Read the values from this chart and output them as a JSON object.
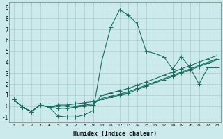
{
  "xlabel": "Humidex (Indice chaleur)",
  "bg_color": "#cce9ec",
  "grid_color": "#aacccc",
  "line_color": "#1a6b60",
  "xlim": [
    -0.5,
    23.5
  ],
  "ylim": [
    -1.5,
    9.5
  ],
  "xticks": [
    0,
    1,
    2,
    3,
    4,
    5,
    6,
    7,
    8,
    9,
    10,
    11,
    12,
    13,
    14,
    15,
    16,
    17,
    18,
    19,
    20,
    21,
    22,
    23
  ],
  "yticks": [
    -1,
    0,
    1,
    2,
    3,
    4,
    5,
    6,
    7,
    8,
    9
  ],
  "line1_x": [
    0,
    1,
    2,
    3,
    4,
    5,
    6,
    7,
    8,
    9,
    10,
    11,
    12,
    13,
    14,
    15,
    16,
    17,
    18,
    19,
    20,
    21,
    22,
    23
  ],
  "line1_y": [
    0.6,
    -0.1,
    -0.5,
    0.1,
    -0.1,
    -0.9,
    -1.0,
    -1.0,
    -0.8,
    -0.4,
    4.2,
    7.2,
    8.8,
    8.3,
    7.5,
    5.0,
    4.8,
    4.5,
    3.4,
    4.5,
    3.5,
    2.0,
    3.5,
    3.5
  ],
  "line2_x": [
    0,
    1,
    2,
    3,
    4,
    5,
    6,
    7,
    8,
    9,
    10,
    11,
    12,
    13,
    14,
    15,
    16,
    17,
    18,
    19,
    20,
    21,
    22,
    23
  ],
  "line2_y": [
    0.6,
    -0.1,
    -0.5,
    0.1,
    -0.1,
    -0.2,
    -0.2,
    -0.1,
    0.0,
    0.1,
    1.0,
    1.2,
    1.4,
    1.6,
    1.9,
    2.2,
    2.5,
    2.8,
    3.1,
    3.4,
    3.7,
    4.0,
    4.3,
    4.6
  ],
  "line3_x": [
    0,
    1,
    2,
    3,
    4,
    5,
    6,
    7,
    8,
    9,
    10,
    11,
    12,
    13,
    14,
    15,
    16,
    17,
    18,
    19,
    20,
    21,
    22,
    23
  ],
  "line3_y": [
    0.6,
    -0.1,
    -0.5,
    0.1,
    -0.1,
    0.0,
    0.0,
    0.0,
    0.1,
    0.2,
    0.7,
    0.9,
    1.1,
    1.3,
    1.6,
    1.9,
    2.2,
    2.5,
    2.8,
    3.1,
    3.4,
    3.7,
    4.0,
    4.3
  ],
  "line4_x": [
    0,
    1,
    2,
    3,
    4,
    5,
    6,
    7,
    8,
    9,
    10,
    11,
    12,
    13,
    14,
    15,
    16,
    17,
    18,
    19,
    20,
    21,
    22,
    23
  ],
  "line4_y": [
    0.6,
    -0.1,
    -0.5,
    0.1,
    -0.1,
    0.1,
    0.1,
    0.2,
    0.3,
    0.4,
    0.6,
    0.8,
    1.0,
    1.2,
    1.5,
    1.8,
    2.1,
    2.4,
    2.7,
    3.0,
    3.3,
    3.6,
    3.9,
    4.2
  ]
}
